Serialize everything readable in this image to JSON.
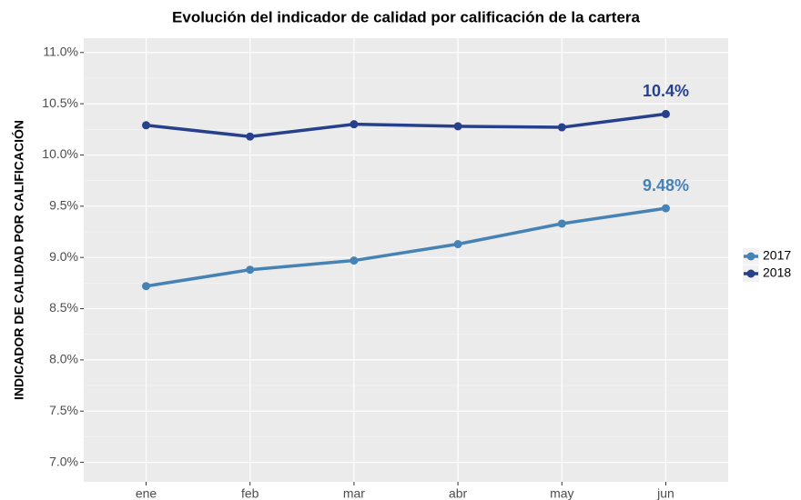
{
  "chart_data": {
    "type": "line",
    "title": "Evolución del indicador de calidad por calificación de la cartera",
    "y_label": "INDICADOR DE CALIDAD POR CALIFICACIÓN",
    "categories": [
      "ene",
      "feb",
      "mar",
      "abr",
      "may",
      "jun"
    ],
    "series": [
      {
        "name": "2017",
        "color": "#4682b4",
        "values": [
          8.72,
          8.88,
          8.97,
          9.13,
          9.33,
          9.48
        ],
        "value_labels": [
          null,
          null,
          null,
          null,
          null,
          "9.48%"
        ]
      },
      {
        "name": "2018",
        "color": "#27408b",
        "values": [
          10.29,
          10.18,
          10.3,
          10.28,
          10.27,
          10.4
        ],
        "value_labels": [
          null,
          null,
          null,
          null,
          null,
          "10.4%"
        ]
      }
    ],
    "ylim": [
      6.81,
      11.14
    ],
    "yticks": [
      {
        "value": 7.0,
        "label": "7.0%"
      },
      {
        "value": 7.5,
        "label": "7.5%"
      },
      {
        "value": 8.0,
        "label": "8.0%"
      },
      {
        "value": 8.5,
        "label": "8.5%"
      },
      {
        "value": 9.0,
        "label": "9.0%"
      },
      {
        "value": 9.5,
        "label": "9.5%"
      },
      {
        "value": 10.0,
        "label": "10.0%"
      },
      {
        "value": 10.5,
        "label": "10.5%"
      },
      {
        "value": 11.0,
        "label": "11.0%"
      }
    ],
    "grid": true,
    "legend": "right"
  }
}
